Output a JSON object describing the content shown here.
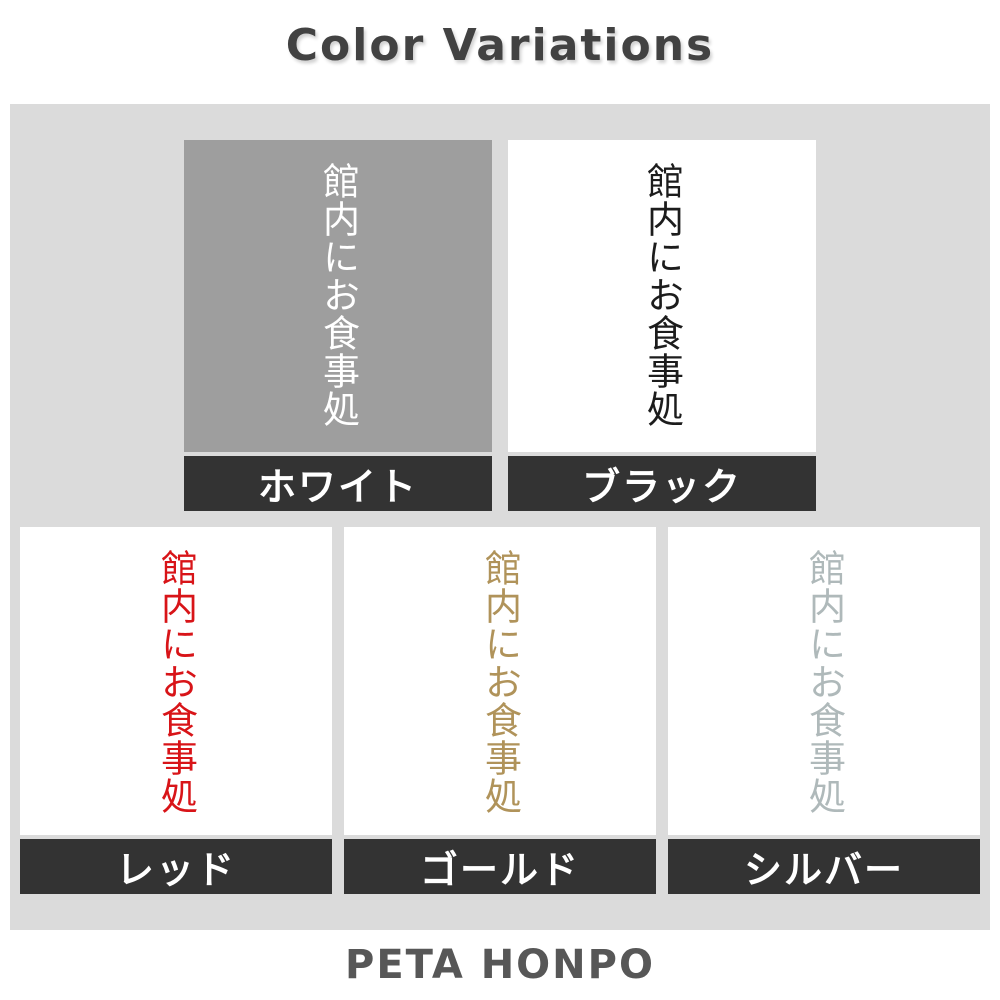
{
  "title": "Color Variations",
  "footer": "PETA HONPO",
  "sample_text": "館内にお食事処",
  "colors": {
    "page_bg": "#ffffff",
    "panel_bg": "#dbdbdb",
    "label_bg": "#333333",
    "label_text": "#ffffff",
    "title_text": "#424242",
    "footer_text": "#575757"
  },
  "variations": [
    {
      "label": "ホワイト",
      "text_color": "#ffffff",
      "tile_bg": "#9e9e9e"
    },
    {
      "label": "ブラック",
      "text_color": "#1c1c1c",
      "tile_bg": "#ffffff"
    },
    {
      "label": "レッド",
      "text_color": "#d81418",
      "tile_bg": "#ffffff"
    },
    {
      "label": "ゴールド",
      "text_color": "#b0935a",
      "tile_bg": "#ffffff"
    },
    {
      "label": "シルバー",
      "text_color": "#afb9ba",
      "tile_bg": "#ffffff"
    }
  ]
}
